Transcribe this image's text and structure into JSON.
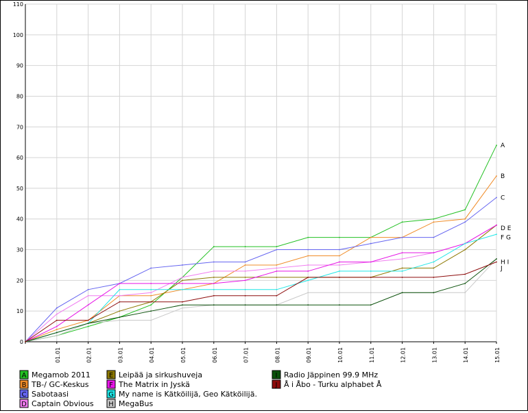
{
  "chart_data": {
    "type": "line",
    "title": "",
    "xlabel": "",
    "ylabel": "",
    "x": [
      "",
      "01.01",
      "02.01",
      "03.01",
      "04.01",
      "05.01",
      "06.01",
      "07.01",
      "08.01",
      "09.01",
      "10.01",
      "11.01",
      "12.01",
      "13.01",
      "14.01",
      "15.01"
    ],
    "ylim": [
      0,
      110
    ],
    "yticks": [
      0,
      10,
      20,
      30,
      40,
      50,
      60,
      70,
      80,
      90,
      100,
      110
    ],
    "grid": true,
    "legend_position": "bottom",
    "end_labels": [
      "A",
      "B",
      "C",
      "D E",
      "F G",
      "H I",
      "J"
    ],
    "series": [
      {
        "letter": "A",
        "name": "Megamob 2011",
        "color": "#22c022",
        "values": [
          0,
          2,
          5,
          8,
          12,
          21,
          31,
          31,
          31,
          34,
          34,
          34,
          39,
          40,
          43,
          64
        ]
      },
      {
        "letter": "B",
        "name": "TB-/ GC-Keskus",
        "color": "#f08c28",
        "values": [
          0,
          4,
          7,
          15,
          15,
          17,
          19,
          25,
          25,
          28,
          28,
          34,
          34,
          39,
          40,
          54
        ]
      },
      {
        "letter": "C",
        "name": "Sabotaasi",
        "color": "#6464f0",
        "values": [
          0,
          11,
          17,
          19,
          24,
          25,
          26,
          26,
          30,
          30,
          30,
          32,
          34,
          34,
          39,
          47
        ]
      },
      {
        "letter": "D",
        "name": "Captain Obvious",
        "color": "#f07cf0",
        "values": [
          0,
          9,
          15,
          15,
          16,
          21,
          23,
          23,
          24,
          25,
          25,
          26,
          27,
          29,
          32,
          38
        ]
      },
      {
        "letter": "E",
        "name": "Leipää ja sirkushuveja",
        "color": "#8c7800",
        "values": [
          0,
          3,
          6,
          10,
          13,
          20,
          21,
          21,
          21,
          21,
          21,
          21,
          24,
          24,
          30,
          38
        ]
      },
      {
        "letter": "F",
        "name": "The Matrix in Jyskä",
        "color": "#e614e6",
        "values": [
          0,
          5,
          12,
          19,
          19,
          19,
          19,
          20,
          23,
          23,
          26,
          26,
          29,
          29,
          32,
          38
        ]
      },
      {
        "letter": "G",
        "name": "My name is Kätköilijä, Geo Kätköilijä.",
        "color": "#1ee6e6",
        "values": [
          0,
          3,
          6,
          17,
          17,
          17,
          17,
          17,
          17,
          20,
          23,
          23,
          23,
          26,
          32,
          35
        ]
      },
      {
        "letter": "H",
        "name": "MegaBus",
        "color": "#c8c8c8",
        "values": [
          0,
          2,
          6,
          7,
          7,
          11,
          12,
          12,
          12,
          16,
          16,
          16,
          16,
          16,
          16,
          27
        ]
      },
      {
        "letter": "I",
        "name": "Radio Jäppinen 99.9 MHz",
        "color": "#0a500a",
        "values": [
          0,
          3,
          6,
          8,
          10,
          12,
          12,
          12,
          12,
          12,
          12,
          12,
          16,
          16,
          19,
          27
        ]
      },
      {
        "letter": "J",
        "name": "Å i Åbo - Turku alphabet Å",
        "color": "#8c0a0a",
        "values": [
          0,
          7,
          7,
          13,
          13,
          13,
          15,
          15,
          15,
          21,
          21,
          21,
          21,
          21,
          22,
          26
        ]
      }
    ]
  }
}
